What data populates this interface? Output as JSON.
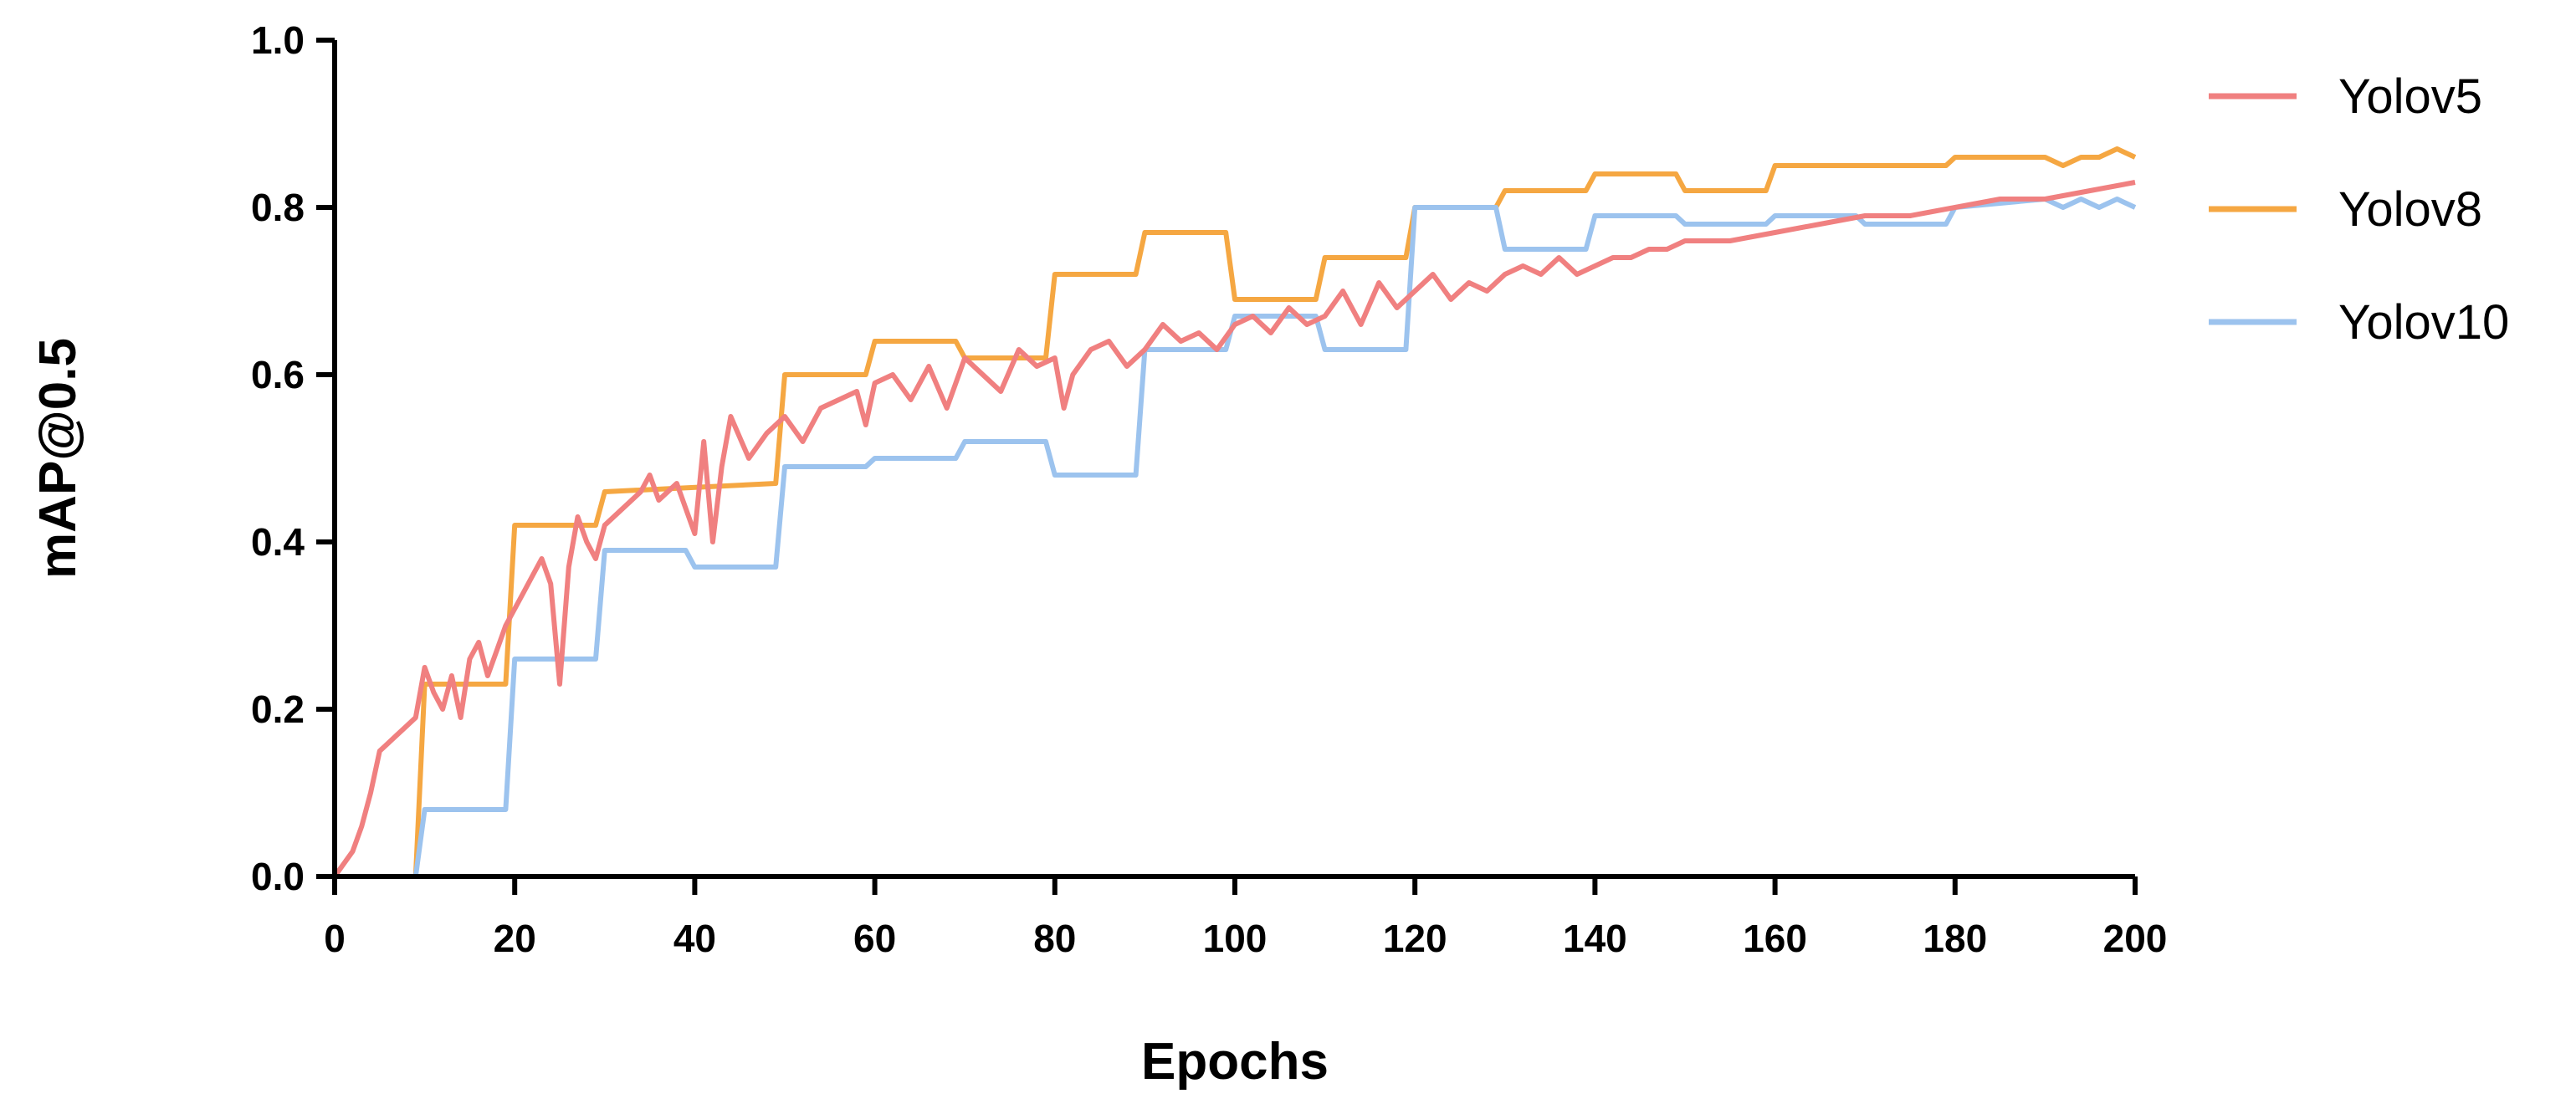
{
  "chart_data": {
    "type": "line",
    "title": "",
    "xlabel": "Epochs",
    "ylabel": "mAP@0.5",
    "xlim": [
      0,
      200
    ],
    "ylim": [
      0,
      1.0
    ],
    "x_ticks": [
      0,
      20,
      40,
      60,
      80,
      100,
      120,
      140,
      160,
      180,
      200
    ],
    "x_tick_labels": [
      "0",
      "20",
      "40",
      "60",
      "80",
      "100",
      "120",
      "140",
      "160",
      "180",
      "200"
    ],
    "y_ticks": [
      0,
      0.2,
      0.4,
      0.6,
      0.8,
      1.0
    ],
    "y_tick_labels": [
      "0.0",
      "0.2",
      "0.4",
      "0.6",
      "0.8",
      "1.0"
    ],
    "grid": false,
    "legend_position": "top-right",
    "series": [
      {
        "name": "Yolov5",
        "color": "#f08080",
        "x": [
          0,
          2,
          3,
          4,
          5,
          6,
          7,
          8,
          9,
          10,
          11,
          12,
          13,
          14,
          15,
          16,
          17,
          18,
          19,
          20,
          21,
          22,
          23,
          24,
          25,
          26,
          27,
          28,
          29,
          30,
          32,
          34,
          35,
          36,
          38,
          40,
          41,
          42,
          43,
          44,
          46,
          48,
          50,
          52,
          54,
          56,
          58,
          59,
          60,
          62,
          64,
          66,
          68,
          70,
          72,
          74,
          76,
          78,
          80,
          81,
          82,
          84,
          86,
          88,
          90,
          92,
          94,
          96,
          98,
          100,
          102,
          104,
          106,
          108,
          110,
          112,
          114,
          116,
          118,
          120,
          122,
          124,
          126,
          128,
          130,
          132,
          134,
          136,
          138,
          140,
          142,
          144,
          146,
          148,
          150,
          155,
          160,
          165,
          170,
          175,
          180,
          185,
          190,
          195,
          200
        ],
        "y": [
          0.0,
          0.03,
          0.06,
          0.1,
          0.15,
          0.16,
          0.17,
          0.18,
          0.19,
          0.25,
          0.22,
          0.2,
          0.24,
          0.19,
          0.26,
          0.28,
          0.24,
          0.27,
          0.3,
          0.32,
          0.34,
          0.36,
          0.38,
          0.35,
          0.23,
          0.37,
          0.43,
          0.4,
          0.38,
          0.42,
          0.44,
          0.46,
          0.48,
          0.45,
          0.47,
          0.41,
          0.52,
          0.4,
          0.49,
          0.55,
          0.5,
          0.53,
          0.55,
          0.52,
          0.56,
          0.57,
          0.58,
          0.54,
          0.59,
          0.6,
          0.57,
          0.61,
          0.56,
          0.62,
          0.6,
          0.58,
          0.63,
          0.61,
          0.62,
          0.56,
          0.6,
          0.63,
          0.64,
          0.61,
          0.63,
          0.66,
          0.64,
          0.65,
          0.63,
          0.66,
          0.67,
          0.65,
          0.68,
          0.66,
          0.67,
          0.7,
          0.66,
          0.71,
          0.68,
          0.7,
          0.72,
          0.69,
          0.71,
          0.7,
          0.72,
          0.73,
          0.72,
          0.74,
          0.72,
          0.73,
          0.74,
          0.74,
          0.75,
          0.75,
          0.76,
          0.76,
          0.77,
          0.78,
          0.79,
          0.79,
          0.8,
          0.81,
          0.81,
          0.82,
          0.83
        ]
      },
      {
        "name": "Yolov8",
        "color": "#f5a742",
        "x": [
          0,
          9,
          10,
          19,
          20,
          29,
          30,
          49,
          50,
          59,
          60,
          69,
          70,
          79,
          80,
          89,
          90,
          99,
          100,
          109,
          110,
          119,
          120,
          129,
          130,
          139,
          140,
          149,
          150,
          159,
          160,
          179,
          180,
          190,
          192,
          194,
          196,
          198,
          200
        ],
        "y": [
          0.0,
          0.0,
          0.23,
          0.23,
          0.42,
          0.42,
          0.46,
          0.47,
          0.6,
          0.6,
          0.64,
          0.64,
          0.62,
          0.62,
          0.72,
          0.72,
          0.77,
          0.77,
          0.69,
          0.69,
          0.74,
          0.74,
          0.8,
          0.8,
          0.82,
          0.82,
          0.84,
          0.84,
          0.82,
          0.82,
          0.85,
          0.85,
          0.86,
          0.86,
          0.85,
          0.86,
          0.86,
          0.87,
          0.86
        ]
      },
      {
        "name": "Yolov10",
        "color": "#9cc3ee",
        "x": [
          0,
          9,
          10,
          19,
          20,
          29,
          30,
          39,
          40,
          49,
          50,
          59,
          60,
          69,
          70,
          79,
          80,
          89,
          90,
          99,
          100,
          109,
          110,
          119,
          120,
          129,
          130,
          139,
          140,
          149,
          150,
          159,
          160,
          169,
          170,
          179,
          180,
          190,
          192,
          194,
          196,
          198,
          200
        ],
        "y": [
          0.0,
          0.0,
          0.08,
          0.08,
          0.26,
          0.26,
          0.39,
          0.39,
          0.37,
          0.37,
          0.49,
          0.49,
          0.5,
          0.5,
          0.52,
          0.52,
          0.48,
          0.48,
          0.63,
          0.63,
          0.67,
          0.67,
          0.63,
          0.63,
          0.8,
          0.8,
          0.75,
          0.75,
          0.79,
          0.79,
          0.78,
          0.78,
          0.79,
          0.79,
          0.78,
          0.78,
          0.8,
          0.81,
          0.8,
          0.81,
          0.8,
          0.81,
          0.8
        ]
      }
    ]
  }
}
